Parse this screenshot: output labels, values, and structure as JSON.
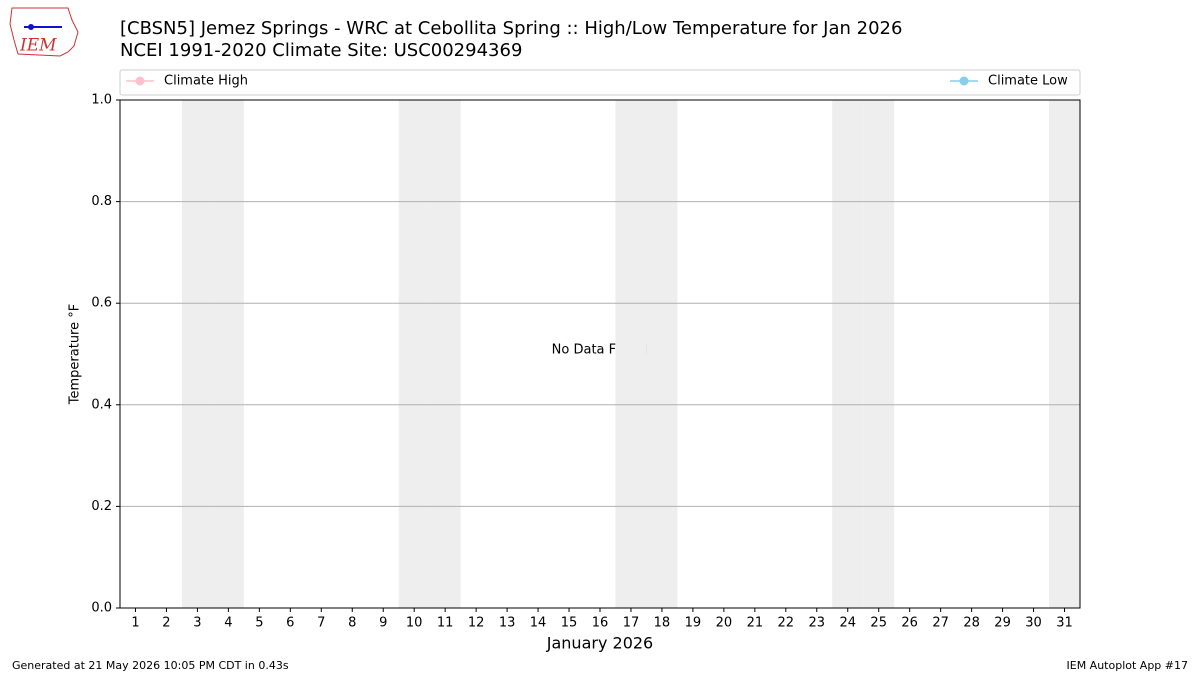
{
  "logo_text": "IEM",
  "chart_data": {
    "type": "line",
    "title": "[CBSN5] Jemez Springs - WRC at Cebollita Spring :: High/Low Temperature for Jan 2026",
    "subtitle": "NCEI 1991-2020 Climate Site: USC00294369",
    "x_label": "January 2026",
    "y_label": "Temperature °F",
    "annotation": "No Data Found",
    "footer_left": "Generated at 21 May 2026 10:05 PM CDT in 0.43s",
    "footer_right": "IEM Autoplot App #17",
    "categories": [
      "1",
      "2",
      "3",
      "4",
      "5",
      "6",
      "7",
      "8",
      "9",
      "10",
      "11",
      "12",
      "13",
      "14",
      "15",
      "16",
      "17",
      "18",
      "19",
      "20",
      "21",
      "22",
      "23",
      "24",
      "25",
      "26",
      "27",
      "28",
      "29",
      "30",
      "31"
    ],
    "shaded_days": [
      3,
      4,
      10,
      11,
      17,
      18,
      24,
      25,
      31
    ],
    "series": [
      {
        "name": "Climate High",
        "color": "pink",
        "values": [
          null,
          null,
          null,
          null,
          null,
          null,
          null,
          null,
          null,
          null,
          null,
          null,
          null,
          null,
          null,
          null,
          null,
          null,
          null,
          null,
          null,
          null,
          null,
          null,
          null,
          null,
          null,
          null,
          null,
          null,
          null
        ]
      },
      {
        "name": "Climate Low",
        "color": "skyblue",
        "values": [
          null,
          null,
          null,
          null,
          null,
          null,
          null,
          null,
          null,
          null,
          null,
          null,
          null,
          null,
          null,
          null,
          null,
          null,
          null,
          null,
          null,
          null,
          null,
          null,
          null,
          null,
          null,
          null,
          null,
          null,
          null
        ]
      }
    ],
    "ylim": [
      0,
      1
    ],
    "yticks": [
      {
        "value": 0,
        "label": "0.0"
      },
      0.2,
      0.4,
      0.6,
      0.8,
      {
        "value": 1,
        "label": "1.0"
      }
    ],
    "grid": true
  }
}
